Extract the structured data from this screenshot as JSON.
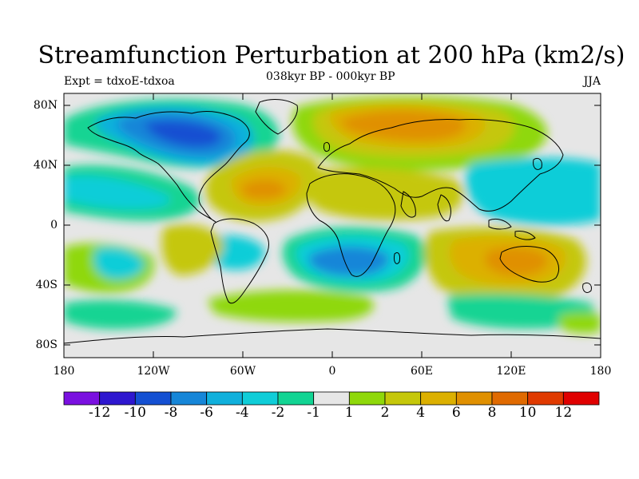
{
  "header": {
    "title": "Streamfunction Perturbation at 200 hPa (km2/s)",
    "subtitle": "038kyr BP - 000kyr BP",
    "experiment": "Expt = tdxoE-tdxoa",
    "season": "JJA"
  },
  "axes": {
    "lat_ticks": [
      "80N",
      "40N",
      "0",
      "40S",
      "80S"
    ],
    "lon_ticks": [
      "180",
      "120W",
      "60W",
      "0",
      "60E",
      "120E",
      "180"
    ]
  },
  "colorbar": {
    "colors": [
      "#7a10e0",
      "#2e17cf",
      "#1450d2",
      "#1686d8",
      "#10b0dc",
      "#0fcdd8",
      "#12d493",
      "#e6e6e6",
      "#8fd80a",
      "#c5c70a",
      "#dcb000",
      "#e09000",
      "#e06a00",
      "#e03a00",
      "#e00000"
    ],
    "labels": [
      "-12",
      "-10",
      "-8",
      "-6",
      "-4",
      "-2",
      "-1",
      "1",
      "2",
      "4",
      "6",
      "8",
      "10",
      "12"
    ]
  },
  "map": {
    "background_color": "#e6e6e6",
    "land_outline": "continent-coastlines"
  }
}
